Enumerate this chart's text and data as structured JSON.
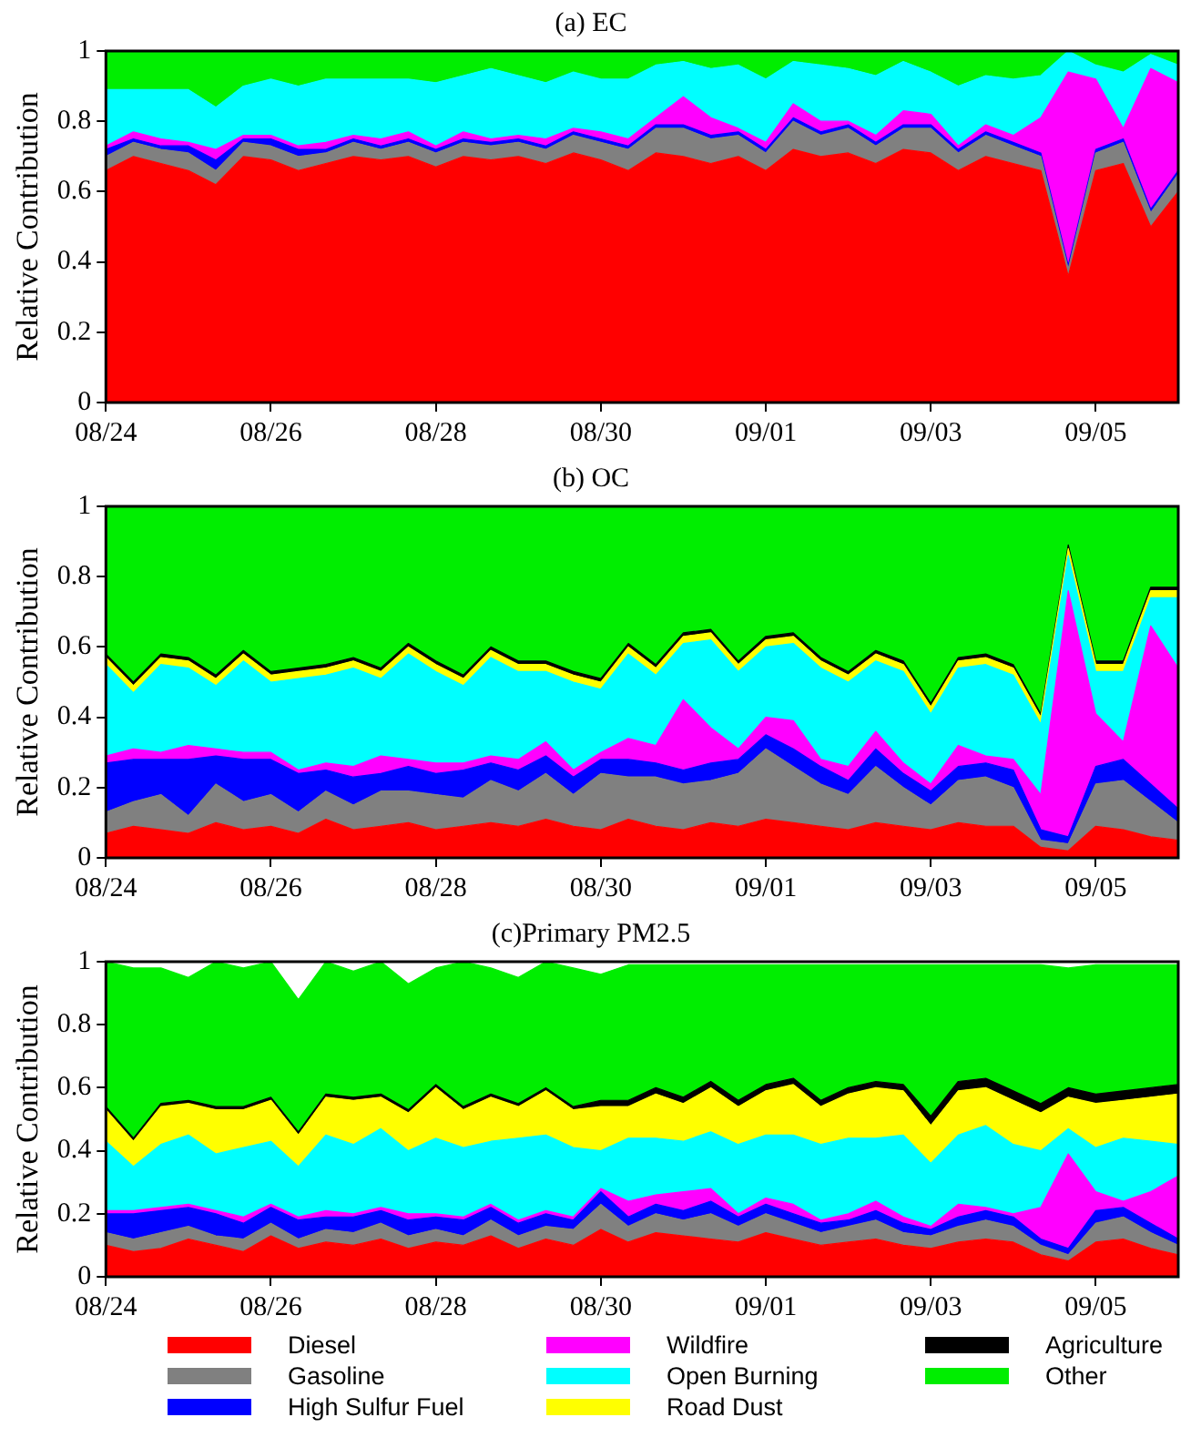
{
  "chart_data": [
    {
      "type": "area",
      "title": "(a) EC",
      "ylabel": "Relative Contribution",
      "stacked": true,
      "grid": false,
      "x": [
        "--08-24T00:00",
        "--08-24T08:00",
        "--08-24T16:00",
        "--08-25T00:00",
        "--08-25T08:00",
        "--08-25T16:00",
        "--08-26T00:00",
        "--08-26T08:00",
        "--08-26T16:00",
        "--08-27T00:00",
        "--08-27T08:00",
        "--08-27T16:00",
        "--08-28T00:00",
        "--08-28T08:00",
        "--08-28T16:00",
        "--08-29T00:00",
        "--08-29T08:00",
        "--08-29T16:00",
        "--08-30T00:00",
        "--08-30T08:00",
        "--08-30T16:00",
        "--08-31T00:00",
        "--08-31T08:00",
        "--08-31T16:00",
        "--09-01T00:00",
        "--09-01T08:00",
        "--09-01T16:00",
        "--09-02T00:00",
        "--09-02T08:00",
        "--09-02T16:00",
        "--09-03T00:00",
        "--09-03T08:00",
        "--09-03T16:00",
        "--09-04T00:00",
        "--09-04T08:00",
        "--09-04T16:00",
        "--09-05T00:00",
        "--09-05T08:00",
        "--09-05T16:00",
        "--09-06T00:00"
      ],
      "xlim": [
        "--08-24",
        "--09-06"
      ],
      "xticks": [
        {
          "value": "--08-24",
          "label": "08/24"
        },
        {
          "value": "--08-26",
          "label": "08/26"
        },
        {
          "value": "--08-28",
          "label": "08/28"
        },
        {
          "value": "--08-30",
          "label": "08/30"
        },
        {
          "value": "--09-01",
          "label": "09/01"
        },
        {
          "value": "--09-03",
          "label": "09/03"
        },
        {
          "value": "--09-05",
          "label": "09/05"
        }
      ],
      "ylim": [
        0,
        1
      ],
      "yticks": [
        0,
        0.2,
        0.4,
        0.6,
        0.8,
        1
      ],
      "series": [
        {
          "color": "#ff0000",
          "values": [
            0.66,
            0.7,
            0.68,
            0.66,
            0.62,
            0.7,
            0.69,
            0.66,
            0.68,
            0.7,
            0.69,
            0.7,
            0.67,
            0.7,
            0.69,
            0.7,
            0.68,
            0.71,
            0.69,
            0.66,
            0.71,
            0.7,
            0.68,
            0.7,
            0.66,
            0.72,
            0.7,
            0.71,
            0.68,
            0.72,
            0.71,
            0.66,
            0.7,
            0.68,
            0.66,
            0.36,
            0.66,
            0.68,
            0.5,
            0.6
          ]
        },
        {
          "color": "#808080",
          "values": [
            0.04,
            0.04,
            0.04,
            0.05,
            0.04,
            0.04,
            0.04,
            0.04,
            0.03,
            0.04,
            0.03,
            0.04,
            0.04,
            0.04,
            0.04,
            0.04,
            0.04,
            0.05,
            0.05,
            0.06,
            0.07,
            0.08,
            0.07,
            0.06,
            0.05,
            0.08,
            0.06,
            0.07,
            0.05,
            0.06,
            0.07,
            0.05,
            0.06,
            0.05,
            0.04,
            0.02,
            0.05,
            0.06,
            0.04,
            0.05
          ]
        },
        {
          "color": "#0000ff",
          "values": [
            0.02,
            0.01,
            0.01,
            0.02,
            0.03,
            0.01,
            0.02,
            0.02,
            0.01,
            0.01,
            0.01,
            0.01,
            0.01,
            0.01,
            0.01,
            0.01,
            0.01,
            0.01,
            0.01,
            0.01,
            0.01,
            0.01,
            0.01,
            0.01,
            0.01,
            0.01,
            0.01,
            0.01,
            0.01,
            0.01,
            0.01,
            0.01,
            0.01,
            0.01,
            0.01,
            0.01,
            0.01,
            0.01,
            0.01,
            0.01
          ]
        },
        {
          "color": "#ff00ff",
          "values": [
            0.01,
            0.02,
            0.02,
            0.01,
            0.03,
            0.01,
            0.01,
            0.01,
            0.02,
            0.01,
            0.02,
            0.02,
            0.01,
            0.02,
            0.01,
            0.01,
            0.02,
            0.01,
            0.02,
            0.02,
            0.02,
            0.08,
            0.05,
            0.01,
            0.02,
            0.04,
            0.03,
            0.01,
            0.02,
            0.04,
            0.03,
            0.01,
            0.02,
            0.02,
            0.1,
            0.55,
            0.2,
            0.03,
            0.4,
            0.25
          ]
        },
        {
          "color": "#00ffff",
          "values": [
            0.16,
            0.12,
            0.14,
            0.15,
            0.12,
            0.14,
            0.16,
            0.17,
            0.18,
            0.16,
            0.17,
            0.15,
            0.18,
            0.16,
            0.2,
            0.17,
            0.16,
            0.16,
            0.15,
            0.17,
            0.15,
            0.1,
            0.14,
            0.18,
            0.18,
            0.12,
            0.16,
            0.15,
            0.17,
            0.14,
            0.12,
            0.17,
            0.14,
            0.16,
            0.12,
            0.06,
            0.04,
            0.16,
            0.04,
            0.05
          ]
        },
        {
          "color": "#00ee00",
          "values": [
            0.11,
            0.11,
            0.11,
            0.11,
            0.16,
            0.1,
            0.08,
            0.1,
            0.08,
            0.08,
            0.08,
            0.08,
            0.09,
            0.07,
            0.05,
            0.07,
            0.09,
            0.06,
            0.08,
            0.08,
            0.04,
            0.03,
            0.05,
            0.04,
            0.08,
            0.03,
            0.04,
            0.05,
            0.07,
            0.03,
            0.06,
            0.1,
            0.07,
            0.08,
            0.07,
            0,
            0.04,
            0.06,
            0.01,
            0.04
          ]
        }
      ]
    },
    {
      "type": "area",
      "title": "(b) OC",
      "ylabel": "Relative Contribution",
      "stacked": true,
      "grid": false,
      "x": [
        "--08-24T00:00",
        "--08-24T08:00",
        "--08-24T16:00",
        "--08-25T00:00",
        "--08-25T08:00",
        "--08-25T16:00",
        "--08-26T00:00",
        "--08-26T08:00",
        "--08-26T16:00",
        "--08-27T00:00",
        "--08-27T08:00",
        "--08-27T16:00",
        "--08-28T00:00",
        "--08-28T08:00",
        "--08-28T16:00",
        "--08-29T00:00",
        "--08-29T08:00",
        "--08-29T16:00",
        "--08-30T00:00",
        "--08-30T08:00",
        "--08-30T16:00",
        "--08-31T00:00",
        "--08-31T08:00",
        "--08-31T16:00",
        "--09-01T00:00",
        "--09-01T08:00",
        "--09-01T16:00",
        "--09-02T00:00",
        "--09-02T08:00",
        "--09-02T16:00",
        "--09-03T00:00",
        "--09-03T08:00",
        "--09-03T16:00",
        "--09-04T00:00",
        "--09-04T08:00",
        "--09-04T16:00",
        "--09-05T00:00",
        "--09-05T08:00",
        "--09-05T16:00",
        "--09-06T00:00"
      ],
      "xlim": [
        "--08-24",
        "--09-06"
      ],
      "xticks": [
        {
          "value": "--08-24",
          "label": "08/24"
        },
        {
          "value": "--08-26",
          "label": "08/26"
        },
        {
          "value": "--08-28",
          "label": "08/28"
        },
        {
          "value": "--08-30",
          "label": "08/30"
        },
        {
          "value": "--09-01",
          "label": "09/01"
        },
        {
          "value": "--09-03",
          "label": "09/03"
        },
        {
          "value": "--09-05",
          "label": "09/05"
        }
      ],
      "ylim": [
        0,
        1
      ],
      "yticks": [
        0,
        0.2,
        0.4,
        0.6,
        0.8,
        1
      ],
      "series": [
        {
          "color": "#ff0000",
          "values": [
            0.07,
            0.09,
            0.08,
            0.07,
            0.1,
            0.08,
            0.09,
            0.07,
            0.11,
            0.08,
            0.09,
            0.1,
            0.08,
            0.09,
            0.1,
            0.09,
            0.11,
            0.09,
            0.08,
            0.11,
            0.09,
            0.08,
            0.1,
            0.09,
            0.11,
            0.1,
            0.09,
            0.08,
            0.1,
            0.09,
            0.08,
            0.1,
            0.09,
            0.09,
            0.03,
            0.02,
            0.09,
            0.08,
            0.06,
            0.05
          ]
        },
        {
          "color": "#808080",
          "values": [
            0.06,
            0.07,
            0.1,
            0.05,
            0.11,
            0.08,
            0.09,
            0.06,
            0.08,
            0.07,
            0.1,
            0.09,
            0.1,
            0.08,
            0.12,
            0.1,
            0.13,
            0.09,
            0.16,
            0.12,
            0.14,
            0.13,
            0.12,
            0.15,
            0.2,
            0.16,
            0.12,
            0.1,
            0.16,
            0.11,
            0.07,
            0.12,
            0.14,
            0.11,
            0.02,
            0.02,
            0.12,
            0.14,
            0.1,
            0.05
          ]
        },
        {
          "color": "#0000ff",
          "values": [
            0.14,
            0.12,
            0.1,
            0.16,
            0.08,
            0.12,
            0.1,
            0.11,
            0.06,
            0.08,
            0.05,
            0.07,
            0.06,
            0.08,
            0.05,
            0.06,
            0.05,
            0.05,
            0.04,
            0.05,
            0.04,
            0.04,
            0.05,
            0.04,
            0.04,
            0.05,
            0.05,
            0.04,
            0.05,
            0.04,
            0.04,
            0.04,
            0.04,
            0.05,
            0.03,
            0.02,
            0.05,
            0.06,
            0.05,
            0.04
          ]
        },
        {
          "color": "#ff00ff",
          "values": [
            0.02,
            0.03,
            0.02,
            0.04,
            0.02,
            0.02,
            0.02,
            0.01,
            0.02,
            0.03,
            0.05,
            0.02,
            0.03,
            0.02,
            0.02,
            0.03,
            0.04,
            0.02,
            0.02,
            0.06,
            0.05,
            0.2,
            0.1,
            0.03,
            0.05,
            0.08,
            0.02,
            0.04,
            0.05,
            0.03,
            0.02,
            0.06,
            0.02,
            0.03,
            0.1,
            0.7,
            0.15,
            0.05,
            0.45,
            0.4
          ]
        },
        {
          "color": "#00ffff",
          "values": [
            0.26,
            0.16,
            0.25,
            0.22,
            0.18,
            0.26,
            0.2,
            0.26,
            0.25,
            0.28,
            0.22,
            0.3,
            0.26,
            0.22,
            0.28,
            0.25,
            0.2,
            0.25,
            0.18,
            0.24,
            0.2,
            0.16,
            0.25,
            0.22,
            0.2,
            0.22,
            0.26,
            0.24,
            0.2,
            0.26,
            0.2,
            0.22,
            0.26,
            0.24,
            0.2,
            0.1,
            0.12,
            0.2,
            0.08,
            0.2
          ]
        },
        {
          "color": "#ffff00",
          "values": [
            0.02,
            0.02,
            0.02,
            0.02,
            0.02,
            0.02,
            0.02,
            0.02,
            0.02,
            0.02,
            0.02,
            0.02,
            0.02,
            0.02,
            0.02,
            0.02,
            0.02,
            0.02,
            0.02,
            0.02,
            0.02,
            0.02,
            0.02,
            0.02,
            0.02,
            0.02,
            0.02,
            0.02,
            0.02,
            0.02,
            0.02,
            0.02,
            0.02,
            0.02,
            0.02,
            0.02,
            0.02,
            0.02,
            0.02,
            0.02
          ]
        },
        {
          "color": "#000000",
          "values": [
            0.01,
            0.01,
            0.01,
            0.01,
            0.01,
            0.01,
            0.01,
            0.01,
            0.01,
            0.01,
            0.01,
            0.01,
            0.01,
            0.01,
            0.01,
            0.01,
            0.01,
            0.01,
            0.01,
            0.01,
            0.01,
            0.01,
            0.01,
            0.01,
            0.01,
            0.01,
            0.01,
            0.01,
            0.01,
            0.01,
            0.01,
            0.01,
            0.01,
            0.01,
            0.01,
            0.01,
            0.01,
            0.01,
            0.01,
            0.01
          ]
        },
        {
          "color": "#00ee00",
          "values": [
            0.42,
            0.5,
            0.42,
            0.43,
            0.48,
            0.41,
            0.47,
            0.46,
            0.45,
            0.43,
            0.46,
            0.39,
            0.44,
            0.48,
            0.4,
            0.44,
            0.44,
            0.47,
            0.49,
            0.39,
            0.45,
            0.36,
            0.35,
            0.44,
            0.37,
            0.36,
            0.43,
            0.47,
            0.41,
            0.44,
            0.56,
            0.43,
            0.42,
            0.45,
            0.59,
            0.11,
            0.44,
            0.44,
            0.23,
            0.23
          ]
        }
      ]
    },
    {
      "type": "area",
      "title": "(c)Primary PM2.5",
      "ylabel": "Relative Contribution",
      "stacked": true,
      "grid": false,
      "legend": "bottom",
      "x": [
        "--08-24T00:00",
        "--08-24T08:00",
        "--08-24T16:00",
        "--08-25T00:00",
        "--08-25T08:00",
        "--08-25T16:00",
        "--08-26T00:00",
        "--08-26T08:00",
        "--08-26T16:00",
        "--08-27T00:00",
        "--08-27T08:00",
        "--08-27T16:00",
        "--08-28T00:00",
        "--08-28T08:00",
        "--08-28T16:00",
        "--08-29T00:00",
        "--08-29T08:00",
        "--08-29T16:00",
        "--08-30T00:00",
        "--08-30T08:00",
        "--08-30T16:00",
        "--08-31T00:00",
        "--08-31T08:00",
        "--08-31T16:00",
        "--09-01T00:00",
        "--09-01T08:00",
        "--09-01T16:00",
        "--09-02T00:00",
        "--09-02T08:00",
        "--09-02T16:00",
        "--09-03T00:00",
        "--09-03T08:00",
        "--09-03T16:00",
        "--09-04T00:00",
        "--09-04T08:00",
        "--09-04T16:00",
        "--09-05T00:00",
        "--09-05T08:00",
        "--09-05T16:00",
        "--09-06T00:00"
      ],
      "xlim": [
        "--08-24",
        "--09-06"
      ],
      "xticks": [
        {
          "value": "--08-24",
          "label": "08/24"
        },
        {
          "value": "--08-26",
          "label": "08/26"
        },
        {
          "value": "--08-28",
          "label": "08/28"
        },
        {
          "value": "--08-30",
          "label": "08/30"
        },
        {
          "value": "--09-01",
          "label": "09/01"
        },
        {
          "value": "--09-03",
          "label": "09/03"
        },
        {
          "value": "--09-05",
          "label": "09/05"
        }
      ],
      "ylim": [
        0,
        1
      ],
      "yticks": [
        0,
        0.2,
        0.4,
        0.6,
        0.8,
        1
      ],
      "series": [
        {
          "name": "Diesel",
          "color": "#ff0000",
          "values": [
            0.1,
            0.08,
            0.09,
            0.12,
            0.1,
            0.08,
            0.13,
            0.09,
            0.11,
            0.1,
            0.12,
            0.09,
            0.11,
            0.1,
            0.13,
            0.09,
            0.12,
            0.1,
            0.15,
            0.11,
            0.14,
            0.13,
            0.12,
            0.11,
            0.14,
            0.12,
            0.1,
            0.11,
            0.12,
            0.1,
            0.09,
            0.11,
            0.12,
            0.11,
            0.07,
            0.05,
            0.11,
            0.12,
            0.09,
            0.07
          ]
        },
        {
          "name": "Gasoline",
          "color": "#808080",
          "values": [
            0.04,
            0.04,
            0.05,
            0.04,
            0.03,
            0.04,
            0.04,
            0.03,
            0.04,
            0.04,
            0.05,
            0.04,
            0.04,
            0.03,
            0.05,
            0.04,
            0.04,
            0.05,
            0.08,
            0.05,
            0.06,
            0.05,
            0.08,
            0.05,
            0.06,
            0.05,
            0.04,
            0.05,
            0.06,
            0.04,
            0.04,
            0.05,
            0.06,
            0.05,
            0.03,
            0.02,
            0.06,
            0.07,
            0.05,
            0.03
          ]
        },
        {
          "name": "High Sulfur Fuel",
          "color": "#0000ff",
          "values": [
            0.06,
            0.08,
            0.07,
            0.06,
            0.07,
            0.05,
            0.05,
            0.06,
            0.04,
            0.05,
            0.04,
            0.05,
            0.04,
            0.05,
            0.04,
            0.04,
            0.04,
            0.03,
            0.04,
            0.03,
            0.03,
            0.03,
            0.04,
            0.03,
            0.03,
            0.03,
            0.03,
            0.02,
            0.03,
            0.03,
            0.02,
            0.03,
            0.03,
            0.03,
            0.02,
            0.02,
            0.04,
            0.03,
            0.03,
            0.02
          ]
        },
        {
          "name": "Wildfire",
          "color": "#ff00ff",
          "values": [
            0.01,
            0.01,
            0.01,
            0.01,
            0.01,
            0.02,
            0.01,
            0.01,
            0.02,
            0.01,
            0.01,
            0.02,
            0.01,
            0.01,
            0.01,
            0.01,
            0.01,
            0.01,
            0.01,
            0.05,
            0.03,
            0.06,
            0.04,
            0.01,
            0.02,
            0.03,
            0.01,
            0.02,
            0.03,
            0.02,
            0.01,
            0.04,
            0.01,
            0.01,
            0.1,
            0.3,
            0.06,
            0.02,
            0.1,
            0.2
          ]
        },
        {
          "name": "Open Burning",
          "color": "#00ffff",
          "values": [
            0.22,
            0.14,
            0.2,
            0.22,
            0.18,
            0.22,
            0.2,
            0.16,
            0.24,
            0.22,
            0.25,
            0.2,
            0.24,
            0.22,
            0.2,
            0.26,
            0.24,
            0.22,
            0.12,
            0.2,
            0.18,
            0.16,
            0.18,
            0.22,
            0.2,
            0.22,
            0.24,
            0.24,
            0.2,
            0.26,
            0.2,
            0.22,
            0.26,
            0.22,
            0.18,
            0.08,
            0.14,
            0.2,
            0.16,
            0.1
          ]
        },
        {
          "name": "Road Dust",
          "color": "#ffff00",
          "values": [
            0.1,
            0.08,
            0.12,
            0.1,
            0.14,
            0.12,
            0.13,
            0.1,
            0.12,
            0.14,
            0.1,
            0.12,
            0.16,
            0.12,
            0.14,
            0.1,
            0.14,
            0.12,
            0.14,
            0.1,
            0.14,
            0.12,
            0.14,
            0.12,
            0.14,
            0.16,
            0.12,
            0.14,
            0.16,
            0.14,
            0.12,
            0.14,
            0.12,
            0.14,
            0.12,
            0.1,
            0.14,
            0.12,
            0.14,
            0.16
          ]
        },
        {
          "name": "Agriculture",
          "color": "#000000",
          "values": [
            0.01,
            0.01,
            0.01,
            0.01,
            0.01,
            0.01,
            0.01,
            0.01,
            0.01,
            0.01,
            0.01,
            0.01,
            0.01,
            0.01,
            0.01,
            0.01,
            0.01,
            0.01,
            0.02,
            0.02,
            0.02,
            0.02,
            0.02,
            0.02,
            0.02,
            0.02,
            0.02,
            0.02,
            0.02,
            0.02,
            0.03,
            0.03,
            0.03,
            0.03,
            0.03,
            0.03,
            0.03,
            0.03,
            0.03,
            0.03
          ]
        },
        {
          "name": "Other",
          "color": "#00ee00",
          "values": [
            0.46,
            0.54,
            0.43,
            0.39,
            0.46,
            0.44,
            0.43,
            0.42,
            0.42,
            0.4,
            0.42,
            0.4,
            0.37,
            0.46,
            0.4,
            0.4,
            0.4,
            0.44,
            0.4,
            0.43,
            0.39,
            0.42,
            0.37,
            0.43,
            0.38,
            0.36,
            0.43,
            0.39,
            0.37,
            0.38,
            0.48,
            0.37,
            0.36,
            0.4,
            0.44,
            0.38,
            0.41,
            0.4,
            0.39,
            0.38
          ]
        }
      ]
    }
  ]
}
